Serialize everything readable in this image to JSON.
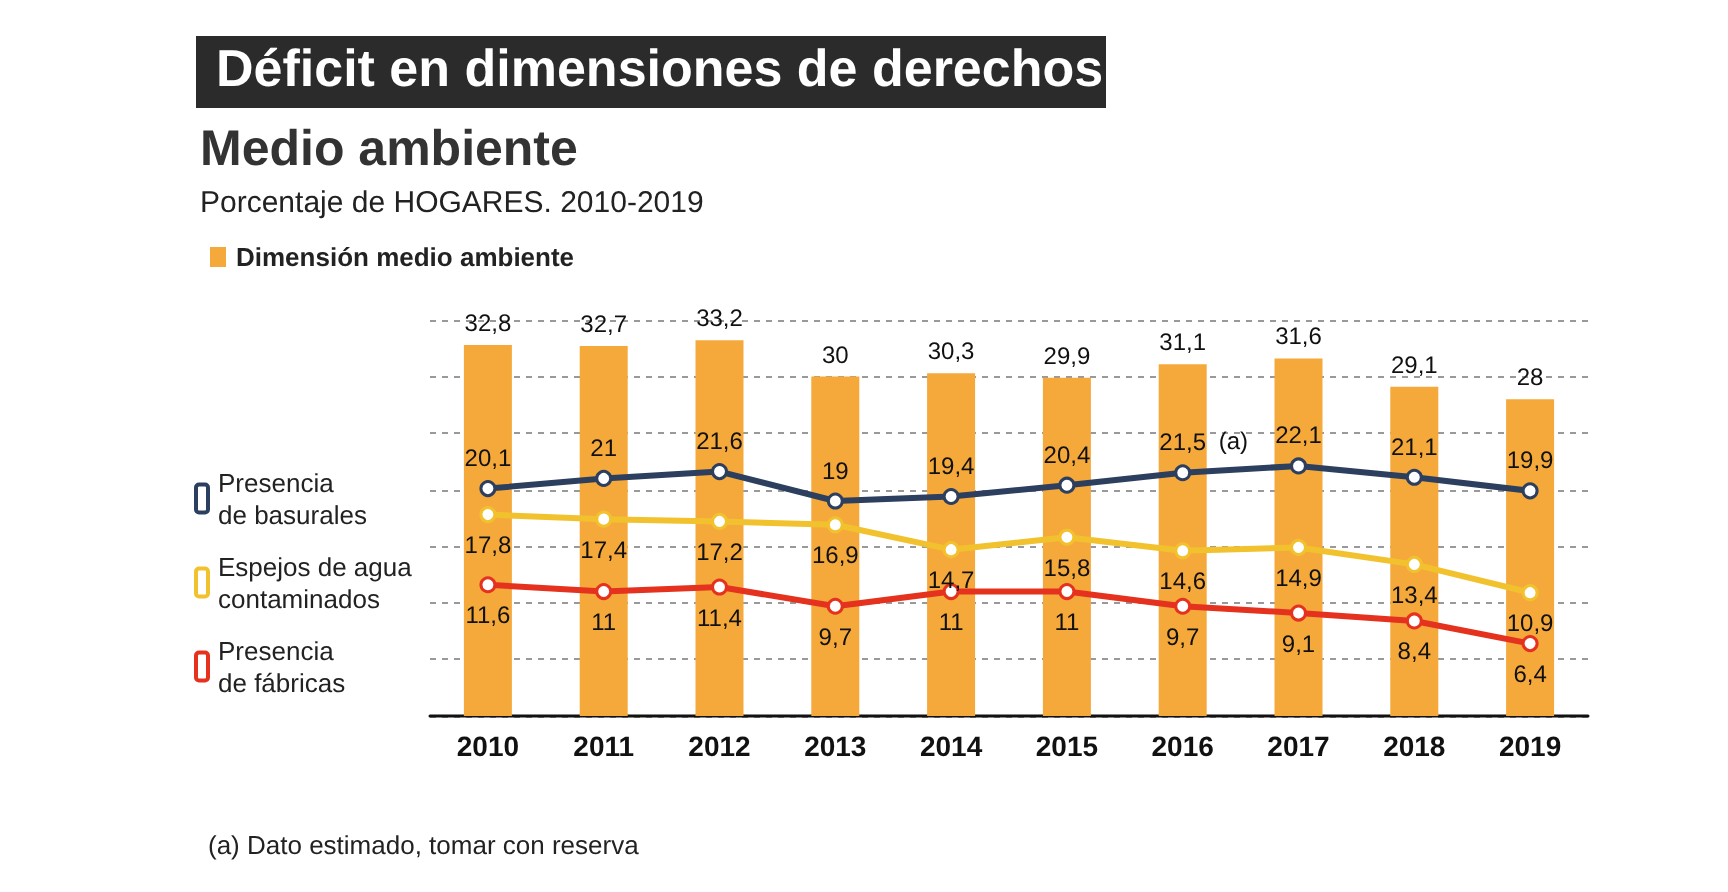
{
  "chart_data": {
    "type": "bar",
    "title": "Déficit en dimensiones de derechos",
    "subtitle": "Medio ambiente",
    "ylabel": "Porcentaje de HOGARES. 2010-2019",
    "categories": [
      "2010",
      "2011",
      "2012",
      "2013",
      "2014",
      "2015",
      "2016",
      "2017",
      "2018",
      "2019"
    ],
    "series": [
      {
        "name": "Dimensión medio ambiente",
        "color": "#f6a93b",
        "values": [
          32.8,
          32.7,
          33.2,
          30,
          30.3,
          29.9,
          31.1,
          31.6,
          29.1,
          28
        ],
        "value_labels": [
          "32,8",
          "32,7",
          "33,2",
          "30",
          "30,3",
          "29,9",
          "31,1",
          "31,6",
          "29,1",
          "28"
        ]
      },
      {
        "name": "Presencia\nde basurales",
        "type": "line",
        "color": "#2d3f5e",
        "values": [
          20.1,
          21,
          21.6,
          19,
          19.4,
          20.4,
          21.5,
          22.1,
          21.1,
          19.9
        ],
        "value_labels": [
          "20,1",
          "21",
          "21,6",
          "19",
          "19,4",
          "20,4",
          "21,5",
          "22,1",
          "21,1",
          "19,9"
        ]
      },
      {
        "name": "Espejos de agua\ncontaminados",
        "type": "line",
        "color": "#f2c22e",
        "values": [
          17.8,
          17.4,
          17.2,
          16.9,
          14.7,
          15.8,
          14.6,
          14.9,
          13.4,
          10.9
        ],
        "value_labels": [
          "17,8",
          "17,4",
          "17,2",
          "16,9",
          "14,7",
          "15,8",
          "14,6",
          "14,9",
          "13,4",
          "10,9"
        ]
      },
      {
        "name": "Presencia\nde fábricas",
        "type": "line",
        "color": "#e5321f",
        "values": [
          11.6,
          11,
          11.4,
          9.7,
          11,
          11,
          9.7,
          9.1,
          8.4,
          6.4
        ],
        "value_labels": [
          "11,6",
          "11",
          "11,4",
          "9,7",
          "11",
          "11",
          "9,7",
          "9,1",
          "8,4",
          "6,4"
        ]
      }
    ],
    "grid": "y",
    "legend": "top left",
    "marker": "circle",
    "line_style": "solid",
    "annotations": [
      {
        "text": "(a)",
        "x": "2016",
        "y": 21.5
      },
      "(a) Dato estimado, tomar con reserva"
    ]
  }
}
